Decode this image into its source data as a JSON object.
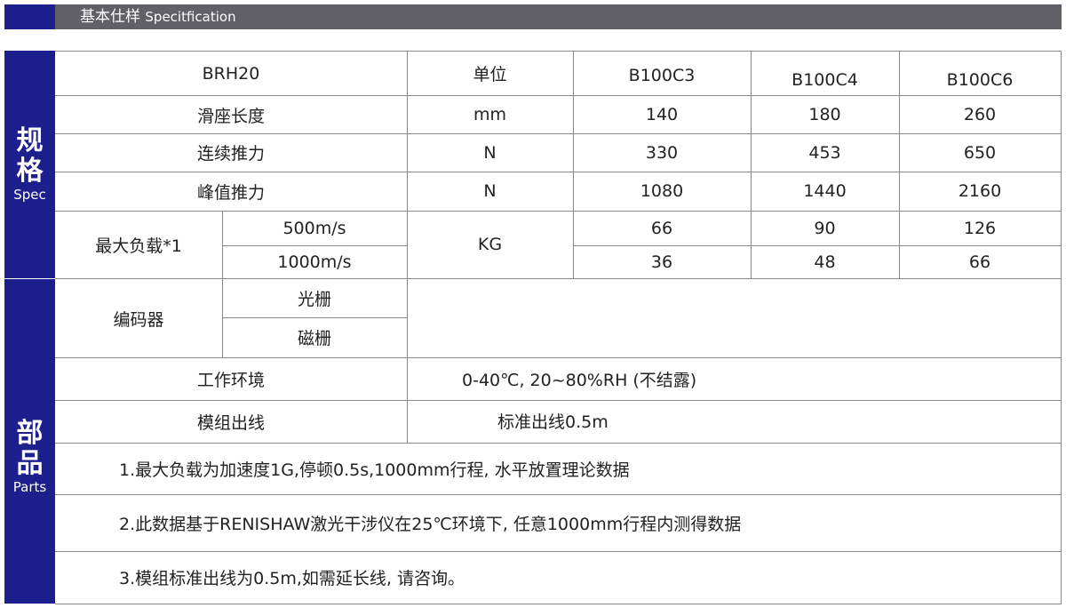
{
  "header": {
    "title_cn": "基本仕样",
    "title_en": "Specitfication"
  },
  "side": {
    "spec_cn": "规格",
    "spec_en": "Spec",
    "parts_cn": "部品",
    "parts_en": "Parts"
  },
  "table": {
    "model": "BRH20",
    "unit_header": "单位",
    "variants": [
      "B100C3",
      "B100C4",
      "B100C6"
    ],
    "rows": [
      {
        "label": "滑座长度",
        "unit": "mm",
        "values": [
          "140",
          "180",
          "260"
        ]
      },
      {
        "label": "连续推力",
        "unit": "N",
        "values": [
          "330",
          "453",
          "650"
        ]
      },
      {
        "label": "峰值推力",
        "unit": "N",
        "values": [
          "1080",
          "1440",
          "2160"
        ]
      }
    ],
    "max_load": {
      "label": "最大负载*1",
      "unit": "KG",
      "sub": [
        {
          "speed": "500m/s",
          "values": [
            "66",
            "90",
            "126"
          ]
        },
        {
          "speed": "1000m/s",
          "values": [
            "36",
            "48",
            "66"
          ]
        }
      ]
    },
    "encoder": {
      "label": "编码器",
      "options": [
        "光栅",
        "磁栅"
      ]
    },
    "environment": {
      "label": "工作环境",
      "value": "0-40℃, 20~80%RH (不结露)"
    },
    "cable": {
      "label": "模组出线",
      "value": "标准出线0.5m"
    },
    "notes": [
      "1.最大负载为加速度1G,停顿0.5s,1000mm行程, 水平放置理论数据",
      "2.此数据基于RENISHAW激光干涉仪在25℃环境下, 任意1000mm行程内测得数据",
      "3.模组标准出线为0.5m,如需延长线, 请咨询。"
    ]
  }
}
